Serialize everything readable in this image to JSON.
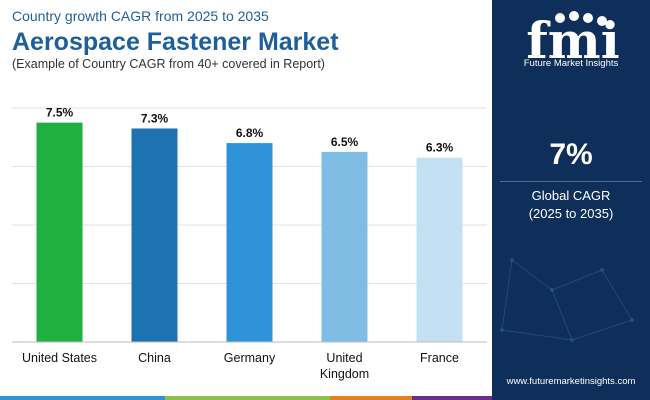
{
  "header": {
    "kicker": "Country growth CAGR from 2025 to 2035",
    "title": "Aerospace Fastener Market",
    "note": "(Example of Country CAGR from 40+ covered in Report)"
  },
  "chart_data": {
    "type": "bar",
    "categories": [
      "United States",
      "China",
      "Germany",
      "United Kingdom",
      "France"
    ],
    "category_lines": [
      [
        "United States"
      ],
      [
        "China"
      ],
      [
        "Germany"
      ],
      [
        "United",
        "Kingdom"
      ],
      [
        "France"
      ]
    ],
    "values": [
      7.5,
      7.3,
      6.8,
      6.5,
      6.3
    ],
    "value_labels": [
      "7.5%",
      "7.3%",
      "6.8%",
      "6.5%",
      "6.3%"
    ],
    "colors": [
      "#1fb03f",
      "#1f72b2",
      "#2e93d9",
      "#7fbde4",
      "#c3e1f3"
    ],
    "ylim": [
      0,
      8
    ],
    "grid": true
  },
  "sidebar": {
    "brand": "fmi",
    "brand_caption": "Future Market Insights",
    "cagr_value": "7%",
    "cagr_label": "Global CAGR",
    "cagr_period": "(2025 to 2035)",
    "website": "www.futuremarketinsights.com"
  },
  "colors": {
    "title": "#1f5f99",
    "sidebar_bg": "#0e2f5a",
    "footer": [
      "#2e93d9",
      "#8bc34a",
      "#e67e22",
      "#6a2c91"
    ]
  }
}
